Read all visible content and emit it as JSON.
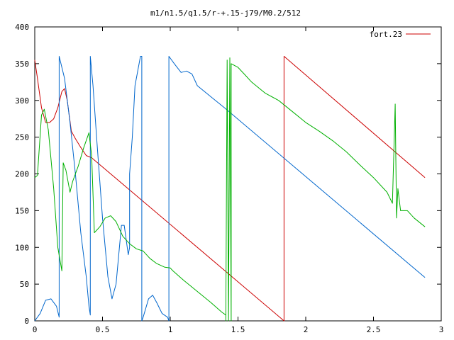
{
  "chart_data": {
    "type": "line",
    "title": "m1/n1.5/q1.5/r-+.15-j79/M0.2/512",
    "xlabel": "",
    "ylabel": "",
    "xlim": [
      0,
      3
    ],
    "ylim": [
      0,
      400
    ],
    "x_ticks": [
      "0",
      "0.5",
      "1",
      "1.5",
      "2",
      "2.5",
      "3"
    ],
    "y_ticks": [
      "0",
      "50",
      "100",
      "150",
      "200",
      "250",
      "300",
      "350",
      "400"
    ],
    "grid": false,
    "legend_position": "top-right",
    "series": [
      {
        "name": "fort.23",
        "color": "#cc0000",
        "points": [
          [
            0,
            355
          ],
          [
            0.02,
            330
          ],
          [
            0.05,
            290
          ],
          [
            0.08,
            270
          ],
          [
            0.11,
            270
          ],
          [
            0.14,
            275
          ],
          [
            0.17,
            290
          ],
          [
            0.2,
            312
          ],
          [
            0.22,
            316
          ],
          [
            0.24,
            300
          ],
          [
            0.27,
            258
          ],
          [
            0.3,
            248
          ],
          [
            0.34,
            236
          ],
          [
            0.38,
            225
          ],
          [
            0.42,
            222
          ],
          [
            1.84,
            0
          ],
          [
            1.84,
            360
          ],
          [
            2.88,
            195
          ]
        ]
      },
      {
        "name": "",
        "color": "#0066cc",
        "points": [
          [
            0,
            0
          ],
          [
            0.04,
            10
          ],
          [
            0.08,
            28
          ],
          [
            0.12,
            30
          ],
          [
            0.16,
            20
          ],
          [
            0.18,
            5
          ],
          [
            0.18,
            360
          ],
          [
            0.22,
            330
          ],
          [
            0.26,
            270
          ],
          [
            0.3,
            200
          ],
          [
            0.34,
            120
          ],
          [
            0.38,
            60
          ],
          [
            0.4,
            20
          ],
          [
            0.41,
            8
          ],
          [
            0.41,
            360
          ],
          [
            0.43,
            320
          ],
          [
            0.46,
            240
          ],
          [
            0.5,
            140
          ],
          [
            0.54,
            60
          ],
          [
            0.57,
            30
          ],
          [
            0.6,
            50
          ],
          [
            0.64,
            130
          ],
          [
            0.66,
            130
          ],
          [
            0.69,
            90
          ],
          [
            0.7,
            100
          ],
          [
            0.7,
            200
          ],
          [
            0.72,
            250
          ],
          [
            0.74,
            320
          ],
          [
            0.78,
            360
          ],
          [
            0.79,
            360
          ],
          [
            0.79,
            0
          ],
          [
            0.8,
            5
          ],
          [
            0.84,
            30
          ],
          [
            0.87,
            35
          ],
          [
            0.9,
            25
          ],
          [
            0.94,
            10
          ],
          [
            0.98,
            5
          ],
          [
            0.99,
            0
          ],
          [
            0.99,
            360
          ],
          [
            1.03,
            350
          ],
          [
            1.08,
            338
          ],
          [
            1.12,
            340
          ],
          [
            1.16,
            336
          ],
          [
            1.2,
            320
          ],
          [
            1.3,
            305
          ],
          [
            1.4,
            290
          ],
          [
            2.88,
            59
          ]
        ]
      },
      {
        "name": "",
        "color": "#00b000",
        "points": [
          [
            0,
            195
          ],
          [
            0.02,
            198
          ],
          [
            0.05,
            280
          ],
          [
            0.07,
            288
          ],
          [
            0.1,
            260
          ],
          [
            0.14,
            180
          ],
          [
            0.17,
            100
          ],
          [
            0.2,
            68
          ],
          [
            0.21,
            215
          ],
          [
            0.23,
            205
          ],
          [
            0.26,
            175
          ],
          [
            0.28,
            190
          ],
          [
            0.32,
            210
          ],
          [
            0.36,
            235
          ],
          [
            0.4,
            256
          ],
          [
            0.42,
            225
          ],
          [
            0.44,
            120
          ],
          [
            0.48,
            128
          ],
          [
            0.52,
            140
          ],
          [
            0.56,
            143
          ],
          [
            0.6,
            135
          ],
          [
            0.65,
            115
          ],
          [
            0.7,
            105
          ],
          [
            0.75,
            98
          ],
          [
            0.8,
            95
          ],
          [
            0.85,
            85
          ],
          [
            0.9,
            78
          ],
          [
            0.96,
            73
          ],
          [
            1.0,
            72
          ],
          [
            1.02,
            68
          ],
          [
            1.1,
            55
          ],
          [
            1.2,
            40
          ],
          [
            1.3,
            25
          ],
          [
            1.38,
            12
          ],
          [
            1.41,
            8
          ],
          [
            1.41,
            0
          ],
          [
            1.42,
            355
          ],
          [
            1.43,
            0
          ],
          [
            1.44,
            358
          ],
          [
            1.45,
            0
          ],
          [
            1.45,
            350
          ],
          [
            1.5,
            345
          ],
          [
            1.55,
            335
          ],
          [
            1.6,
            325
          ],
          [
            1.7,
            310
          ],
          [
            1.8,
            300
          ],
          [
            1.9,
            285
          ],
          [
            2.0,
            270
          ],
          [
            2.1,
            258
          ],
          [
            2.2,
            245
          ],
          [
            2.3,
            230
          ],
          [
            2.4,
            212
          ],
          [
            2.5,
            195
          ],
          [
            2.6,
            175
          ],
          [
            2.64,
            160
          ],
          [
            2.66,
            295
          ],
          [
            2.67,
            140
          ],
          [
            2.68,
            180
          ],
          [
            2.7,
            150
          ],
          [
            2.75,
            150
          ],
          [
            2.8,
            140
          ],
          [
            2.88,
            128
          ]
        ]
      }
    ]
  }
}
